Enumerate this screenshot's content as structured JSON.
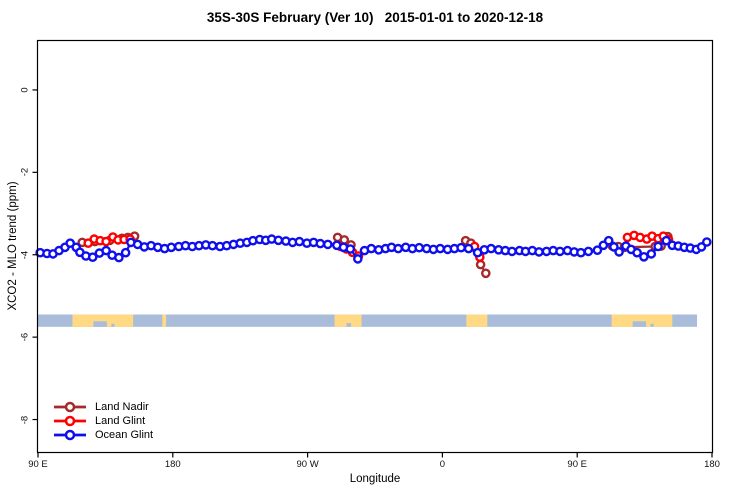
{
  "title": "35S-30S February (Ver 10)   2015-01-01 to 2020-12-18",
  "colors": {
    "land_nadir": "#A52A2A",
    "land_glint": "#FF0000",
    "ocean_glint": "#0F0FEE",
    "map_ocean": "#A9BDDB",
    "map_land": "#FFD983",
    "axis": "#000000",
    "background": "#FFFFFF"
  },
  "legend": {
    "items": [
      {
        "label": "Land Nadir",
        "color_key": "land_nadir"
      },
      {
        "label": "Land Glint",
        "color_key": "land_glint"
      },
      {
        "label": "Ocean Glint",
        "color_key": "ocean_glint"
      }
    ]
  },
  "chart_data": {
    "type": "line",
    "title": "35S-30S February (Ver 10)   2015-01-01 to 2020-12-18",
    "xlabel": "Longitude",
    "ylabel": "XCO2 - MLO trend (ppm)",
    "xlim": [
      90,
      540
    ],
    "ylim": [
      -8.8,
      1.2
    ],
    "x_axis_note": "longitude wrapped eastward: 90E, 180, 90W, 0, 90E, 180",
    "x_ticks": [
      {
        "lon": 90,
        "label": "90 E"
      },
      {
        "lon": 180,
        "label": "180"
      },
      {
        "lon": 270,
        "label": "90 W"
      },
      {
        "lon": 360,
        "label": "0"
      },
      {
        "lon": 450,
        "label": "90 E"
      },
      {
        "lon": 540,
        "label": "180"
      }
    ],
    "y_ticks": [
      {
        "value": 0,
        "label": "0"
      },
      {
        "value": -2,
        "label": "-2"
      },
      {
        "value": -4,
        "label": "-4"
      },
      {
        "value": -6,
        "label": "-6"
      },
      {
        "value": -8,
        "label": "-8"
      }
    ],
    "series": [
      {
        "name": "Land Nadir",
        "color_key": "land_nadir",
        "clusters": [
          [
            [
              119.5,
              -3.7
            ],
            [
              128,
              -3.68
            ],
            [
              138,
              -3.65
            ],
            [
              146,
              -3.6
            ],
            [
              150,
              -3.58
            ],
            [
              154.5,
              -3.55
            ]
          ],
          [
            [
              290,
              -3.58
            ],
            [
              294.5,
              -3.64
            ],
            [
              299,
              -3.76
            ]
          ],
          [
            [
              375.5,
              -3.66
            ],
            [
              379,
              -3.72
            ],
            [
              385.5,
              -4.24
            ],
            [
              389,
              -4.45
            ]
          ],
          [
            [
              473.5,
              -3.79
            ],
            [
              477.5,
              -3.8
            ],
            [
              481.5,
              -3.82
            ],
            [
              502,
              -3.8
            ],
            [
              506,
              -3.79
            ],
            [
              510.5,
              -3.56
            ]
          ]
        ]
      },
      {
        "name": "Land Glint",
        "color_key": "land_glint",
        "clusters": [
          [
            [
              123.5,
              -3.72
            ],
            [
              127.5,
              -3.62
            ],
            [
              131.5,
              -3.66
            ],
            [
              135.5,
              -3.68
            ],
            [
              140,
              -3.57
            ],
            [
              143.5,
              -3.64
            ],
            [
              147.5,
              -3.63
            ],
            [
              151.5,
              -3.62
            ]
          ],
          [
            [
              292,
              -3.8
            ],
            [
              296,
              -3.86
            ],
            [
              300,
              -3.94
            ],
            [
              304,
              -4.03
            ]
          ],
          [
            [
              381.5,
              -3.8
            ],
            [
              385,
              -4.06
            ]
          ],
          [
            [
              483.5,
              -3.58
            ],
            [
              488,
              -3.53
            ],
            [
              492,
              -3.58
            ],
            [
              496.5,
              -3.62
            ],
            [
              500,
              -3.55
            ],
            [
              504,
              -3.61
            ],
            [
              507.5,
              -3.55
            ],
            [
              511,
              -3.63
            ]
          ]
        ]
      },
      {
        "name": "Ocean Glint",
        "color_key": "ocean_glint",
        "clusters": [
          [
            [
              91.5,
              -3.95
            ],
            [
              96,
              -3.97
            ],
            [
              100,
              -3.98
            ],
            [
              104,
              -3.9
            ],
            [
              108,
              -3.82
            ],
            [
              111.5,
              -3.72
            ],
            [
              115.5,
              -3.82
            ],
            [
              118,
              -3.94
            ],
            [
              122,
              -4.03
            ],
            [
              126.5,
              -4.06
            ],
            [
              131,
              -3.96
            ],
            [
              135.5,
              -3.9
            ],
            [
              139.5,
              -4.01
            ],
            [
              144,
              -4.07
            ],
            [
              148.5,
              -3.95
            ],
            [
              152,
              -3.7
            ],
            [
              156.5,
              -3.75
            ],
            [
              161,
              -3.81
            ],
            [
              165.5,
              -3.78
            ],
            [
              170,
              -3.82
            ],
            [
              174.5,
              -3.85
            ],
            [
              179,
              -3.82
            ],
            [
              184,
              -3.8
            ],
            [
              188.5,
              -3.78
            ],
            [
              193,
              -3.8
            ],
            [
              197.5,
              -3.78
            ],
            [
              202,
              -3.76
            ],
            [
              206.5,
              -3.78
            ],
            [
              211.5,
              -3.8
            ],
            [
              216,
              -3.78
            ],
            [
              220.5,
              -3.75
            ],
            [
              225,
              -3.72
            ],
            [
              229.5,
              -3.7
            ],
            [
              233.5,
              -3.66
            ],
            [
              238,
              -3.63
            ],
            [
              242,
              -3.65
            ],
            [
              246,
              -3.62
            ],
            [
              250.5,
              -3.65
            ],
            [
              255.5,
              -3.67
            ],
            [
              260,
              -3.7
            ],
            [
              264.5,
              -3.68
            ],
            [
              269.5,
              -3.72
            ],
            [
              274,
              -3.7
            ],
            [
              278.5,
              -3.73
            ],
            [
              283.5,
              -3.75
            ],
            [
              289.5,
              -3.77
            ],
            [
              294,
              -3.82
            ],
            [
              298.5,
              -3.86
            ],
            [
              303.5,
              -4.1
            ],
            [
              308,
              -3.9
            ],
            [
              312.5,
              -3.85
            ],
            [
              317.5,
              -3.88
            ],
            [
              322,
              -3.85
            ],
            [
              326,
              -3.82
            ],
            [
              330.5,
              -3.85
            ],
            [
              335.5,
              -3.82
            ],
            [
              340,
              -3.85
            ],
            [
              344.5,
              -3.83
            ],
            [
              349.5,
              -3.85
            ],
            [
              354,
              -3.87
            ],
            [
              358.5,
              -3.85
            ],
            [
              363.5,
              -3.87
            ],
            [
              368,
              -3.85
            ],
            [
              372.5,
              -3.83
            ],
            [
              377.5,
              -3.85
            ],
            [
              383.5,
              -3.95
            ],
            [
              388,
              -3.88
            ],
            [
              392.5,
              -3.85
            ],
            [
              397.5,
              -3.88
            ],
            [
              402,
              -3.9
            ],
            [
              406.5,
              -3.92
            ],
            [
              411.5,
              -3.9
            ],
            [
              415.5,
              -3.92
            ],
            [
              420,
              -3.9
            ],
            [
              424.5,
              -3.93
            ],
            [
              429.5,
              -3.92
            ],
            [
              434,
              -3.9
            ],
            [
              438.5,
              -3.92
            ],
            [
              443.5,
              -3.9
            ],
            [
              448,
              -3.93
            ],
            [
              452.5,
              -3.95
            ],
            [
              457.5,
              -3.92
            ],
            [
              463.5,
              -3.89
            ],
            [
              467.5,
              -3.77
            ],
            [
              471,
              -3.66
            ],
            [
              474.5,
              -3.81
            ],
            [
              478,
              -3.93
            ],
            [
              482.5,
              -3.79
            ],
            [
              486,
              -3.87
            ],
            [
              490,
              -3.95
            ],
            [
              494.5,
              -4.05
            ],
            [
              499.5,
              -3.98
            ],
            [
              504,
              -3.8
            ],
            [
              509.5,
              -3.66
            ],
            [
              513.5,
              -3.77
            ],
            [
              517.5,
              -3.79
            ],
            [
              521.5,
              -3.82
            ],
            [
              525.5,
              -3.84
            ],
            [
              529.5,
              -3.87
            ],
            [
              533,
              -3.81
            ],
            [
              536.5,
              -3.69
            ]
          ]
        ]
      }
    ],
    "map_band": {
      "description": "35S-30S latitude strip map (ocean / land)",
      "y_top": -5.45,
      "y_bottom": -5.75,
      "lon_range": [
        90,
        530
      ],
      "land_segments": [
        [
          113,
          153.5
        ],
        [
          173,
          175.5
        ],
        [
          288,
          306
        ],
        [
          376,
          390
        ],
        [
          473,
          513.5
        ]
      ],
      "coast_notches": [
        {
          "range": [
            127,
            136
          ],
          "depth": 0.45
        },
        {
          "range": [
            139,
            141
          ],
          "depth": 0.25
        },
        {
          "range": [
            296,
            299
          ],
          "depth": 0.3
        },
        {
          "range": [
            487,
            496
          ],
          "depth": 0.45
        },
        {
          "range": [
            499,
            501
          ],
          "depth": 0.25
        }
      ]
    }
  }
}
